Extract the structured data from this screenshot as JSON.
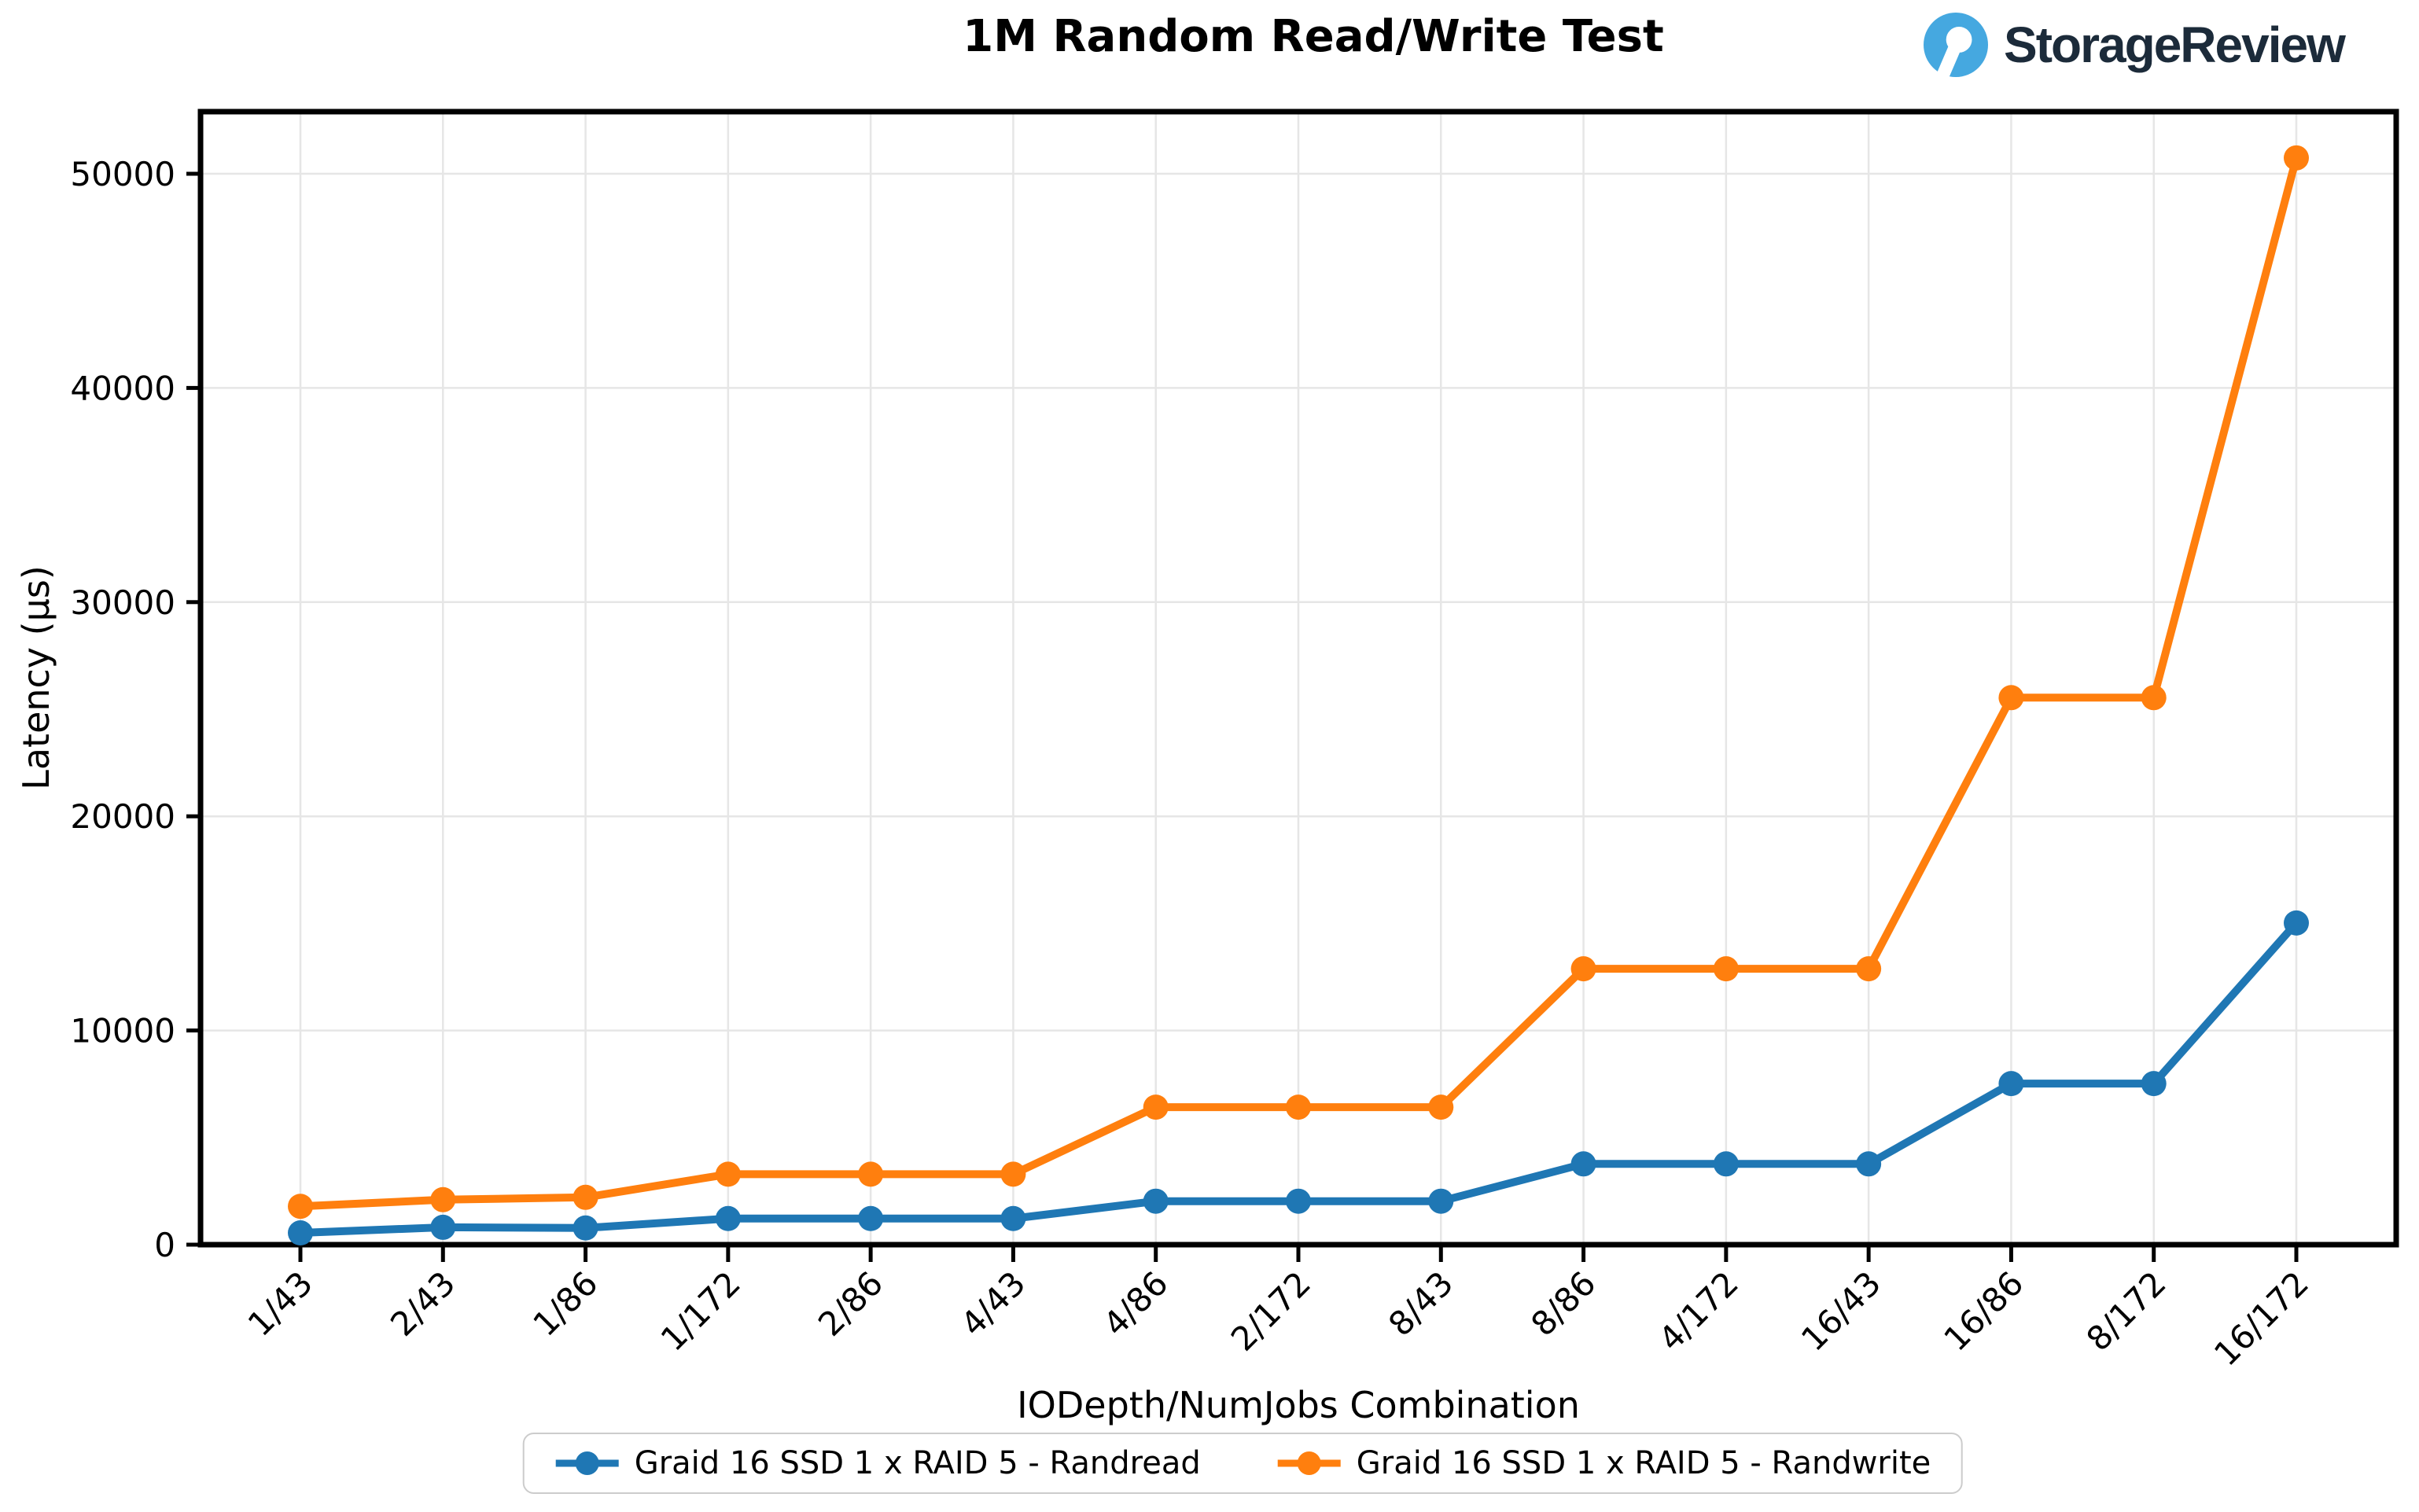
{
  "brand": {
    "name": "StorageReview",
    "icon_color": "#45A8E0",
    "text_color": "#1C2B3A"
  },
  "chart_data": {
    "type": "line",
    "title": "1M Random Read/Write Test",
    "xlabel": "IODepth/NumJobs Combination",
    "ylabel": "Latency (µs)",
    "categories": [
      "1/43",
      "2/43",
      "1/86",
      "1/172",
      "2/86",
      "4/43",
      "4/86",
      "2/172",
      "8/43",
      "8/86",
      "4/172",
      "16/43",
      "16/86",
      "8/172",
      "16/172"
    ],
    "series": [
      {
        "name": "Graid 16 SSD 1 x RAID 5 - Randread",
        "color": "#1f77b4",
        "values": [
          550,
          810,
          780,
          1220,
          1220,
          1220,
          2030,
          2030,
          2030,
          3770,
          3770,
          3770,
          7520,
          7520,
          15020
        ]
      },
      {
        "name": "Graid 16 SSD 1 x RAID 5 - Randwrite",
        "color": "#ff7f0e",
        "values": [
          1790,
          2100,
          2210,
          3290,
          3290,
          3290,
          6420,
          6420,
          6420,
          12880,
          12880,
          12880,
          25540,
          25540,
          50740
        ]
      }
    ],
    "ylim": [
      0,
      52900
    ],
    "yticks": [
      0,
      10000,
      20000,
      30000,
      40000,
      50000
    ],
    "grid": true,
    "legend_position": "bottom",
    "grid_color": "#e6e6e6",
    "axis_color": "#000000"
  }
}
